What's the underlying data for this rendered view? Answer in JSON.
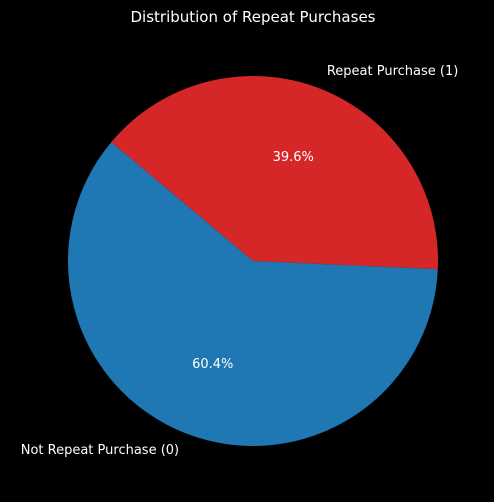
{
  "chart_data": {
    "type": "pie",
    "title": "Distribution of Repeat Purchases",
    "slices": [
      {
        "label": "Repeat Purchase (1)",
        "value": 39.6,
        "pct_label": "39.6%",
        "color": "#d62728"
      },
      {
        "label": "Not Repeat Purchase (0)",
        "value": 60.4,
        "pct_label": "60.4%",
        "color": "#1f77b4"
      }
    ],
    "start_angle_deg": 140,
    "legend": "none"
  },
  "colors": {
    "background": "#000000",
    "text": "#ffffff"
  }
}
